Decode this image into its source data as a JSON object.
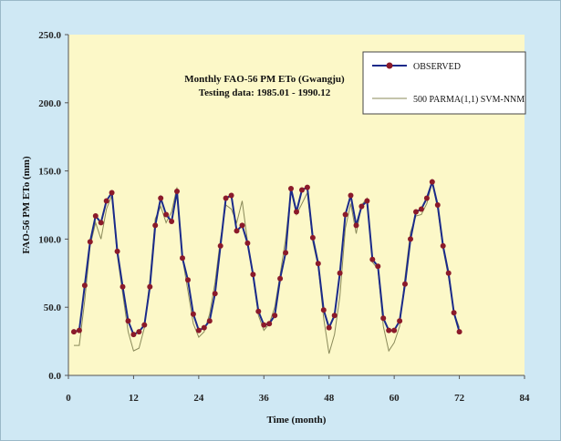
{
  "chart_data": {
    "type": "line",
    "title": "Monthly FAO-56 PM ETo (Gwangju)",
    "subtitle": "Testing data: 1985.01 - 1990.12",
    "xlabel": "Time (month)",
    "ylabel": "FAO-56 PM ETo (mm)",
    "xlim": [
      0,
      84
    ],
    "ylim": [
      0,
      250
    ],
    "xticks": [
      0,
      12,
      24,
      36,
      48,
      60,
      72,
      84
    ],
    "yticks": [
      "0.0",
      "50.0",
      "100.0",
      "150.0",
      "200.0",
      "250.0"
    ],
    "legend_position": "top-right",
    "grid": false,
    "colors": {
      "background": "#cfe8f4",
      "plot_area": "#fcf8c8",
      "observed_line": "#1a2a8a",
      "observed_marker": "#8b1a2a",
      "model_line": "#8a8a5a"
    },
    "series": [
      {
        "name": "OBSERVED",
        "x": [
          1,
          2,
          3,
          4,
          5,
          6,
          7,
          8,
          9,
          10,
          11,
          12,
          13,
          14,
          15,
          16,
          17,
          18,
          19,
          20,
          21,
          22,
          23,
          24,
          25,
          26,
          27,
          28,
          29,
          30,
          31,
          32,
          33,
          34,
          35,
          36,
          37,
          38,
          39,
          40,
          41,
          42,
          43,
          44,
          45,
          46,
          47,
          48,
          49,
          50,
          51,
          52,
          53,
          54,
          55,
          56,
          57,
          58,
          59,
          60,
          61,
          62,
          63,
          64,
          65,
          66,
          67,
          68,
          69,
          70,
          71,
          72
        ],
        "values": [
          32,
          33,
          66,
          98,
          117,
          112,
          128,
          134,
          91,
          65,
          40,
          30,
          32,
          37,
          65,
          110,
          130,
          118,
          113,
          135,
          86,
          70,
          45,
          33,
          35,
          40,
          60,
          95,
          130,
          132,
          106,
          110,
          97,
          74,
          47,
          37,
          38,
          44,
          71,
          90,
          137,
          120,
          136,
          138,
          101,
          82,
          48,
          35,
          44,
          75,
          118,
          132,
          110,
          124,
          128,
          85,
          80,
          42,
          33,
          33,
          40,
          67,
          100,
          120,
          122,
          130,
          142,
          125,
          95,
          75,
          46,
          32
        ]
      },
      {
        "name": "500 PARMA(1,1) SVM-NNM",
        "x": [
          1,
          2,
          3,
          4,
          5,
          6,
          7,
          8,
          9,
          10,
          11,
          12,
          13,
          14,
          15,
          16,
          17,
          18,
          19,
          20,
          21,
          22,
          23,
          24,
          25,
          26,
          27,
          28,
          29,
          30,
          31,
          32,
          33,
          34,
          35,
          36,
          37,
          38,
          39,
          40,
          41,
          42,
          43,
          44,
          45,
          46,
          47,
          48,
          49,
          50,
          51,
          52,
          53,
          54,
          55,
          56,
          57,
          58,
          59,
          60,
          61,
          62,
          63,
          64,
          65,
          66,
          67,
          68,
          69,
          70,
          71,
          72
        ],
        "values": [
          22,
          22,
          55,
          95,
          112,
          100,
          122,
          132,
          88,
          60,
          32,
          18,
          20,
          35,
          70,
          115,
          124,
          112,
          120,
          138,
          86,
          62,
          38,
          28,
          32,
          45,
          68,
          100,
          125,
          122,
          112,
          128,
          98,
          72,
          44,
          33,
          38,
          50,
          74,
          100,
          136,
          118,
          126,
          134,
          98,
          80,
          42,
          16,
          30,
          58,
          108,
          126,
          104,
          125,
          130,
          83,
          78,
          36,
          18,
          24,
          36,
          72,
          105,
          117,
          118,
          126,
          142,
          122,
          93,
          72,
          46,
          35
        ]
      }
    ]
  }
}
